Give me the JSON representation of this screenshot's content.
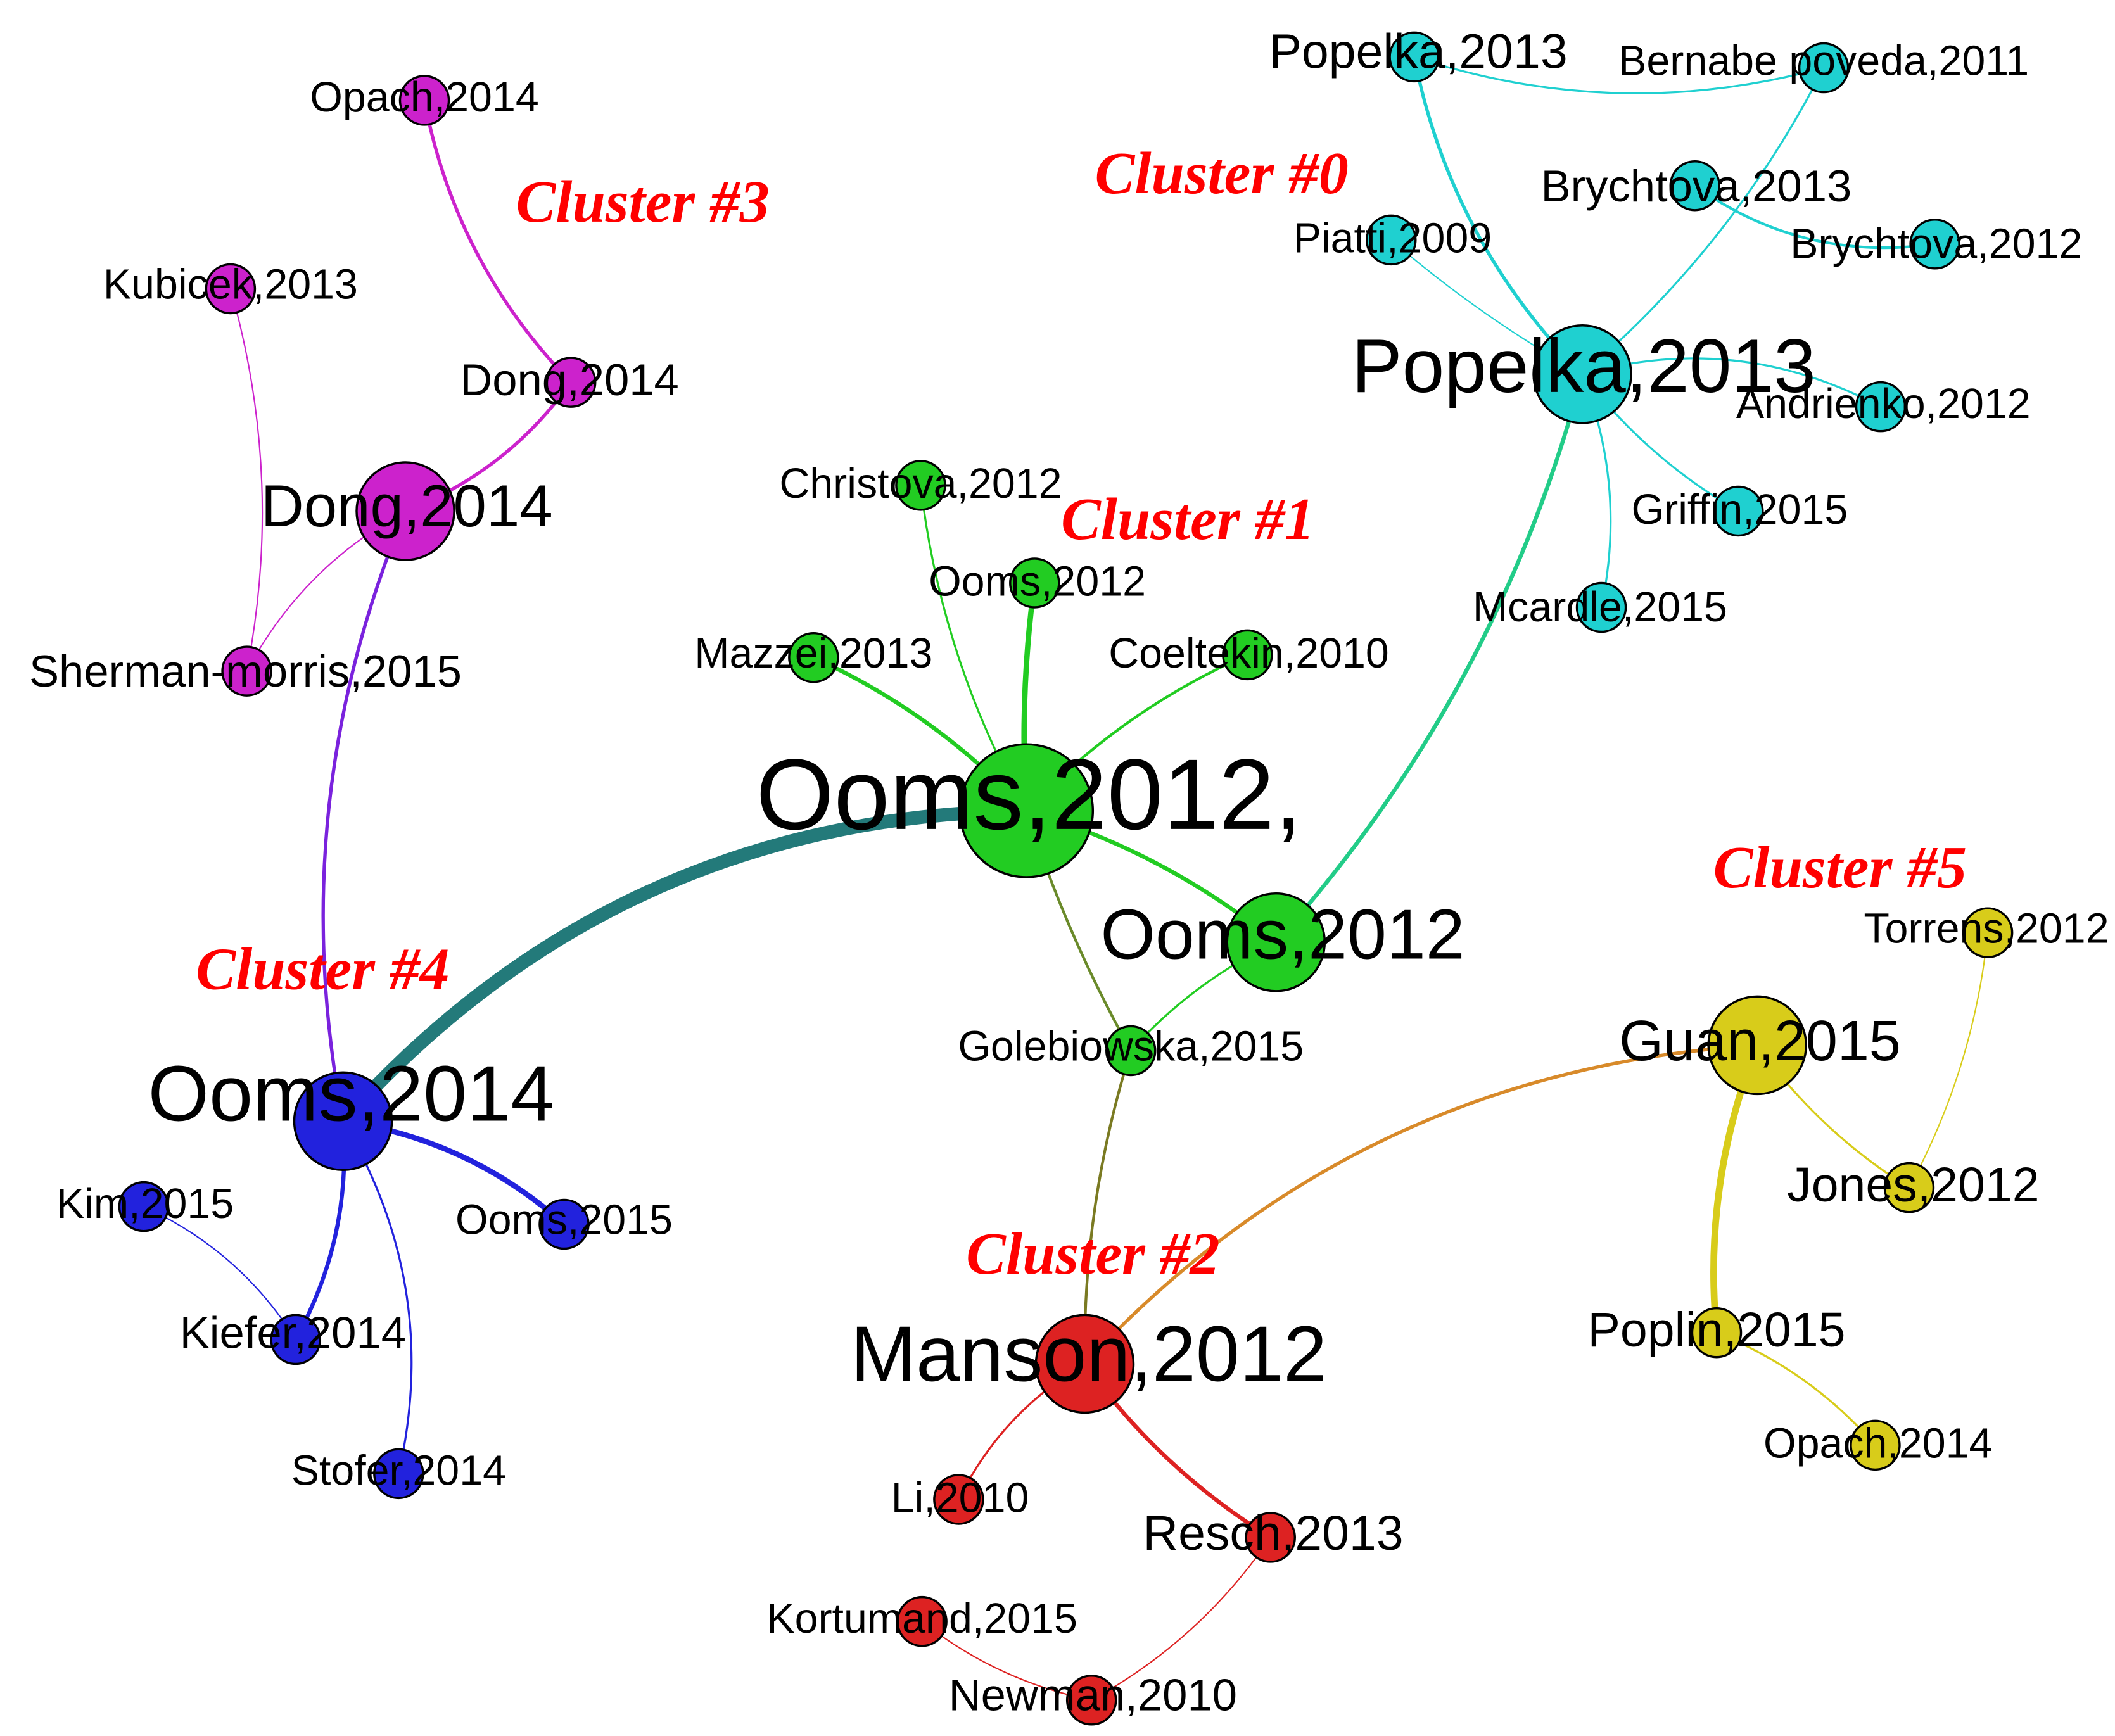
{
  "colors": {
    "cluster0": "#1fd0d0",
    "cluster1": "#22cc22",
    "cluster2": "#dd2222",
    "cluster3": "#cc22cc",
    "cluster4": "#2222dd",
    "cluster5": "#d8cc1a",
    "cluster_label": "#ff0000",
    "background": "#ffffff",
    "node_outline": "#000000"
  },
  "clusters": [
    {
      "id": "c0",
      "label": "Cluster #0"
    },
    {
      "id": "c1",
      "label": "Cluster #1"
    },
    {
      "id": "c2",
      "label": "Cluster #2"
    },
    {
      "id": "c3",
      "label": "Cluster #3"
    },
    {
      "id": "c4",
      "label": "Cluster #4"
    },
    {
      "id": "c5",
      "label": "Cluster #5"
    }
  ],
  "nodes": [
    {
      "id": "popelka2013a",
      "label": "Popelka,2013",
      "cluster": "cluster0",
      "size": "small"
    },
    {
      "id": "bernabe2011",
      "label": "Bernabe poveda,2011",
      "cluster": "cluster0",
      "size": "small"
    },
    {
      "id": "brychtova2013",
      "label": "Brychtova,2013",
      "cluster": "cluster0",
      "size": "small"
    },
    {
      "id": "brychtova2012",
      "label": "Brychtova,2012",
      "cluster": "cluster0",
      "size": "small"
    },
    {
      "id": "piatti2009",
      "label": "Piatti,2009",
      "cluster": "cluster0",
      "size": "small"
    },
    {
      "id": "popelka2013b",
      "label": "Popelka,2013",
      "cluster": "cluster0",
      "size": "large"
    },
    {
      "id": "andrienko2012",
      "label": "Andrienko,2012",
      "cluster": "cluster0",
      "size": "small"
    },
    {
      "id": "griffin2015",
      "label": "Griffin,2015",
      "cluster": "cluster0",
      "size": "small"
    },
    {
      "id": "mcardle2015",
      "label": "Mcardle,2015",
      "cluster": "cluster0",
      "size": "small"
    },
    {
      "id": "christova2012",
      "label": "Christova,2012",
      "cluster": "cluster1",
      "size": "small"
    },
    {
      "id": "ooms2012a",
      "label": "Ooms,2012",
      "cluster": "cluster1",
      "size": "small"
    },
    {
      "id": "mazzei2013",
      "label": "Mazzei,2013",
      "cluster": "cluster1",
      "size": "small"
    },
    {
      "id": "coeltekin2010",
      "label": "Coeltekin,2010",
      "cluster": "cluster1",
      "size": "small"
    },
    {
      "id": "ooms2012main",
      "label": "Ooms,2012,",
      "cluster": "cluster1",
      "size": "huge"
    },
    {
      "id": "ooms2012b",
      "label": "Ooms,2012",
      "cluster": "cluster1",
      "size": "large"
    },
    {
      "id": "golebiowska2015",
      "label": "Golebiowska,2015",
      "cluster": "cluster1",
      "size": "small"
    },
    {
      "id": "opach2014a",
      "label": "Opach,2014",
      "cluster": "cluster3",
      "size": "small"
    },
    {
      "id": "kubicek2013",
      "label": "Kubicek,2013",
      "cluster": "cluster3",
      "size": "small"
    },
    {
      "id": "dong2014a",
      "label": "Dong,2014",
      "cluster": "cluster3",
      "size": "small"
    },
    {
      "id": "dong2014b",
      "label": "Dong,2014",
      "cluster": "cluster3",
      "size": "large"
    },
    {
      "id": "sherman2015",
      "label": "Sherman-morris,2015",
      "cluster": "cluster3",
      "size": "small"
    },
    {
      "id": "ooms2014",
      "label": "Ooms,2014",
      "cluster": "cluster4",
      "size": "large"
    },
    {
      "id": "kim2015",
      "label": "Kim,2015",
      "cluster": "cluster4",
      "size": "small"
    },
    {
      "id": "ooms2015",
      "label": "Ooms,2015",
      "cluster": "cluster4",
      "size": "small"
    },
    {
      "id": "kiefer2014",
      "label": "Kiefer,2014",
      "cluster": "cluster4",
      "size": "small"
    },
    {
      "id": "stofer2014",
      "label": "Stofer,2014",
      "cluster": "cluster4",
      "size": "small"
    },
    {
      "id": "manson2012",
      "label": "Manson,2012",
      "cluster": "cluster2",
      "size": "large"
    },
    {
      "id": "li2010",
      "label": "Li,2010",
      "cluster": "cluster2",
      "size": "small"
    },
    {
      "id": "resch2013",
      "label": "Resch,2013",
      "cluster": "cluster2",
      "size": "small"
    },
    {
      "id": "kortumand2015",
      "label": "Kortumand,2015",
      "cluster": "cluster2",
      "size": "small"
    },
    {
      "id": "newman2010",
      "label": "Newman,2010",
      "cluster": "cluster2",
      "size": "small"
    },
    {
      "id": "torrens2012",
      "label": "Torrens,2012",
      "cluster": "cluster5",
      "size": "small"
    },
    {
      "id": "guan2015",
      "label": "Guan,2015",
      "cluster": "cluster5",
      "size": "large"
    },
    {
      "id": "jones2012",
      "label": "Jones,2012",
      "cluster": "cluster5",
      "size": "small"
    },
    {
      "id": "poplin2015",
      "label": "Poplin,2015",
      "cluster": "cluster5",
      "size": "small"
    },
    {
      "id": "opach2014b",
      "label": "Opach,2014",
      "cluster": "cluster5",
      "size": "small"
    }
  ],
  "edges": [
    {
      "source": "popelka2013a",
      "target": "popelka2013b",
      "color": "#1fd0d0"
    },
    {
      "source": "popelka2013a",
      "target": "bernabe2011",
      "color": "#1fd0d0"
    },
    {
      "source": "bernabe2011",
      "target": "popelka2013b",
      "color": "#1fd0d0"
    },
    {
      "source": "brychtova2013",
      "target": "brychtova2012",
      "color": "#1fd0d0"
    },
    {
      "source": "piatti2009",
      "target": "popelka2013b",
      "color": "#1fd0d0"
    },
    {
      "source": "popelka2013b",
      "target": "andrienko2012",
      "color": "#1fd0d0"
    },
    {
      "source": "popelka2013b",
      "target": "griffin2015",
      "color": "#1fd0d0"
    },
    {
      "source": "popelka2013b",
      "target": "mcardle2015",
      "color": "#1fd0d0"
    },
    {
      "source": "popelka2013b",
      "target": "ooms2012b",
      "color": "#22cc88"
    },
    {
      "source": "christova2012",
      "target": "ooms2012main",
      "color": "#22cc22"
    },
    {
      "source": "ooms2012a",
      "target": "ooms2012main",
      "color": "#22cc22"
    },
    {
      "source": "mazzei2013",
      "target": "ooms2012main",
      "color": "#22cc22"
    },
    {
      "source": "coeltekin2010",
      "target": "ooms2012main",
      "color": "#22cc22"
    },
    {
      "source": "ooms2012main",
      "target": "ooms2012b",
      "color": "#22cc22"
    },
    {
      "source": "ooms2012b",
      "target": "golebiowska2015",
      "color": "#22cc22"
    },
    {
      "source": "ooms2012main",
      "target": "ooms2014",
      "color": "#237a7a"
    },
    {
      "source": "ooms2012main",
      "target": "golebiowska2015",
      "color": "#6a8a2a"
    },
    {
      "source": "golebiowska2015",
      "target": "manson2012",
      "color": "#7a7a22"
    },
    {
      "source": "opach2014a",
      "target": "dong2014a",
      "color": "#cc22cc"
    },
    {
      "source": "dong2014a",
      "target": "dong2014b",
      "color": "#cc22cc"
    },
    {
      "source": "kubicek2013",
      "target": "sherman2015",
      "color": "#cc22cc"
    },
    {
      "source": "dong2014b",
      "target": "sherman2015",
      "color": "#cc22cc"
    },
    {
      "source": "dong2014b",
      "target": "ooms2014",
      "color": "#7a22dd"
    },
    {
      "source": "ooms2014",
      "target": "ooms2015",
      "color": "#2222dd"
    },
    {
      "source": "ooms2014",
      "target": "kiefer2014",
      "color": "#2222dd"
    },
    {
      "source": "ooms2014",
      "target": "stofer2014",
      "color": "#2222dd"
    },
    {
      "source": "kim2015",
      "target": "kiefer2014",
      "color": "#2222dd"
    },
    {
      "source": "manson2012",
      "target": "guan2015",
      "color": "#d88a2a"
    },
    {
      "source": "manson2012",
      "target": "li2010",
      "color": "#dd2222"
    },
    {
      "source": "manson2012",
      "target": "resch2013",
      "color": "#dd2222"
    },
    {
      "source": "resch2013",
      "target": "newman2010",
      "color": "#dd2222"
    },
    {
      "source": "kortumand2015",
      "target": "newman2010",
      "color": "#dd2222"
    },
    {
      "source": "torrens2012",
      "target": "jones2012",
      "color": "#d8cc1a"
    },
    {
      "source": "guan2015",
      "target": "jones2012",
      "color": "#d8cc1a"
    },
    {
      "source": "guan2015",
      "target": "poplin2015",
      "color": "#d8cc1a"
    },
    {
      "source": "poplin2015",
      "target": "opach2014b",
      "color": "#d8cc1a"
    }
  ]
}
